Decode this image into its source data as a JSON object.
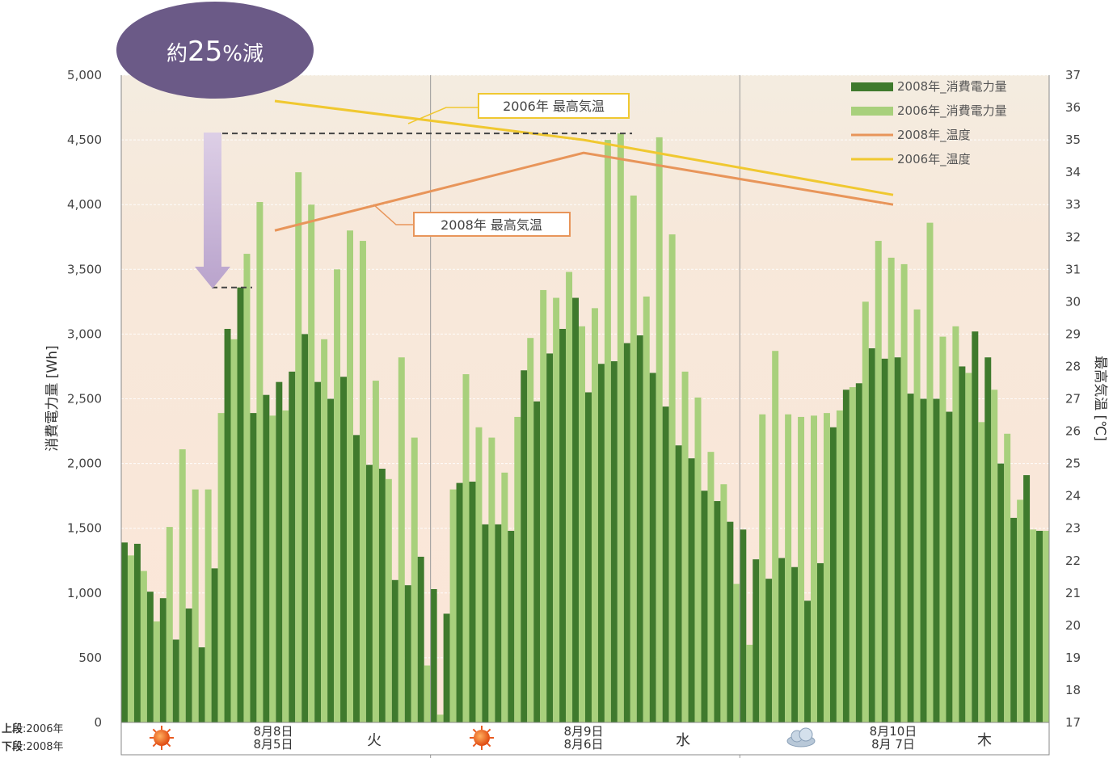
{
  "badge": {
    "text_prefix": "約",
    "text_number": "25",
    "text_suffix": "%減",
    "color": "#6b5a87"
  },
  "row_notes": [
    {
      "label": "上段",
      "value": ":2006年"
    },
    {
      "label": "下段",
      "value": ":2008年"
    }
  ],
  "chart_data": {
    "type": "bar",
    "ylabel_left": "消費電力量 [Wh]",
    "ylabel_right": "最高気温 [℃]",
    "ylim_left": [
      0,
      5000
    ],
    "ylim_right": [
      17,
      37
    ],
    "yticks_left": [
      "0",
      "500",
      "1,000",
      "1,500",
      "2,000",
      "2,500",
      "3,000",
      "3,500",
      "4,000",
      "4,500",
      "5,000"
    ],
    "yticks_right": [
      "17",
      "18",
      "19",
      "20",
      "21",
      "22",
      "23",
      "24",
      "25",
      "26",
      "27",
      "28",
      "29",
      "30",
      "31",
      "32",
      "33",
      "34",
      "35",
      "36",
      "37"
    ],
    "grid": true,
    "legend_position": "top-right",
    "days": [
      {
        "date_2006": "8月8日",
        "date_2008": "8月5日",
        "dow": "火",
        "weather": "sunny"
      },
      {
        "date_2006": "8月9日",
        "date_2008": "8月6日",
        "dow": "水",
        "weather": "sunny"
      },
      {
        "date_2006": "8月10日",
        "date_2008": "8月 7日",
        "dow": "木",
        "weather": "cloudy"
      }
    ],
    "series": [
      {
        "name": "2008年_消費電力量",
        "color": "#3f7a2d",
        "values": [
          1390,
          1380,
          1010,
          960,
          640,
          880,
          580,
          1190,
          3040,
          3360,
          2390,
          2530,
          2630,
          2710,
          3000,
          2630,
          2500,
          2670,
          2220,
          1990,
          1960,
          1100,
          1060,
          1280,
          1030,
          840,
          1850,
          1860,
          1530,
          1530,
          1480,
          2720,
          2480,
          2850,
          3040,
          3280,
          2550,
          2770,
          2790,
          2930,
          2990,
          2700,
          2440,
          2140,
          2040,
          1790,
          1710,
          1550,
          1490,
          1260,
          1110,
          1270,
          1200,
          940,
          1230,
          2280,
          2570,
          2620,
          2890,
          2810,
          2820,
          2540,
          2500,
          2500,
          2400,
          2750,
          3020,
          2820,
          2000,
          1580,
          1910,
          1480
        ]
      },
      {
        "name": "2006年_消費電力量",
        "color": "#a8d07c",
        "values": [
          1290,
          1170,
          780,
          1510,
          2110,
          1800,
          1800,
          2390,
          2960,
          3620,
          4020,
          2370,
          2410,
          4250,
          4000,
          2960,
          3500,
          3800,
          3720,
          2640,
          1880,
          2820,
          2200,
          440,
          60,
          1800,
          2690,
          2280,
          2200,
          1930,
          2360,
          2970,
          3340,
          3280,
          3480,
          3060,
          3200,
          4500,
          4550,
          4070,
          3290,
          4520,
          3770,
          2710,
          2510,
          2090,
          1840,
          1070,
          600,
          2380,
          2870,
          2380,
          2360,
          2370,
          2390,
          2410,
          2590,
          3250,
          3720,
          3590,
          3540,
          3190,
          3860,
          2980,
          3060,
          2700,
          2320,
          2570,
          2230,
          1720,
          1490,
          1480
        ]
      },
      {
        "name": "2008年_温度",
        "color": "#e8955a",
        "values": [
          32.2,
          34.6,
          33.0
        ]
      },
      {
        "name": "2006年_温度",
        "color": "#f0c830",
        "values": [
          36.2,
          35.0,
          33.3
        ]
      }
    ],
    "annotations": [
      {
        "label": "2006年 最高気温",
        "box_color": "#f0c830"
      },
      {
        "label": "2008年 最高気温",
        "box_color": "#e8955a"
      }
    ]
  }
}
